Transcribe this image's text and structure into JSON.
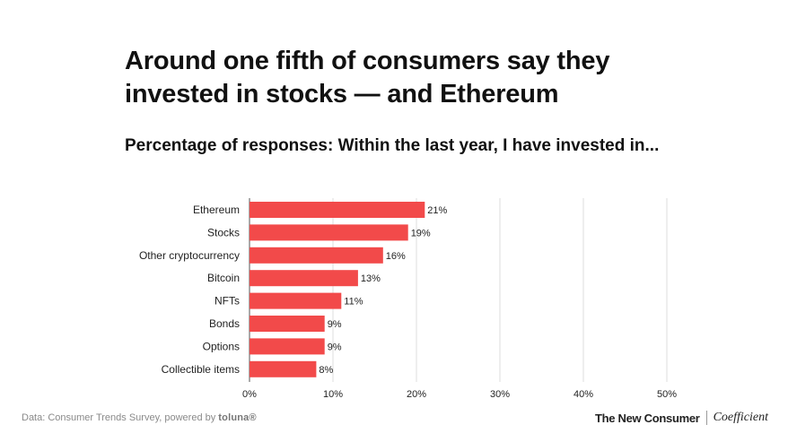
{
  "header": {
    "title": "Around one fifth of consumers say they invested in stocks — and Ethereum",
    "subtitle": "Percentage of responses: Within the last year, I have invested in..."
  },
  "chart_data": {
    "type": "bar",
    "orientation": "horizontal",
    "categories": [
      "Ethereum",
      "Stocks",
      "Other cryptocurrency",
      "Bitcoin",
      "NFTs",
      "Bonds",
      "Options",
      "Collectible items"
    ],
    "values": [
      21,
      19,
      16,
      13,
      11,
      9,
      9,
      8
    ],
    "value_labels": [
      "21%",
      "19%",
      "16%",
      "13%",
      "11%",
      "9%",
      "9%",
      "8%"
    ],
    "xlim": [
      0,
      50
    ],
    "xticks": [
      0,
      10,
      20,
      30,
      40,
      50
    ],
    "xtick_labels": [
      "0%",
      "10%",
      "20%",
      "30%",
      "40%",
      "50%"
    ],
    "grid": true,
    "bar_color": "#f24a4a"
  },
  "footer": {
    "source_prefix": "Data: Consumer Trends Survey, powered by ",
    "source_brand": "toluna®",
    "publisher": "The New Consumer",
    "partner": "Coefficient"
  }
}
